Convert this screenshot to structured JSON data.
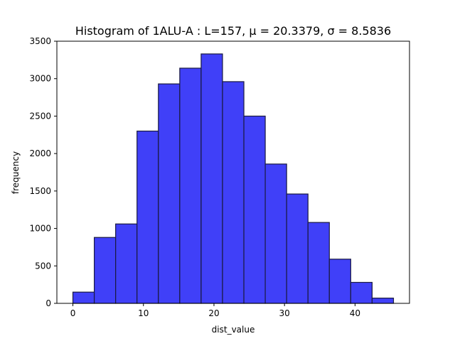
{
  "chart_data": {
    "type": "bar",
    "title": "Histogram of 1ALU-A : L=157, μ = 20.3379, σ = 8.5836",
    "xlabel": "dist_value",
    "ylabel": "frequency",
    "bin_edges": [
      0.0,
      3.03,
      6.06,
      9.09,
      12.12,
      15.15,
      18.18,
      21.21,
      24.24,
      27.27,
      30.3,
      33.33,
      36.36,
      39.39,
      42.42,
      45.45
    ],
    "values": [
      150,
      880,
      1060,
      2300,
      2930,
      3140,
      3330,
      2960,
      2500,
      1860,
      1460,
      1080,
      590,
      280,
      70
    ],
    "xlim": [
      -2.27,
      47.72
    ],
    "ylim": [
      0,
      3500
    ],
    "xticks": [
      0,
      10,
      20,
      30,
      40
    ],
    "yticks": [
      0,
      500,
      1000,
      1500,
      2000,
      2500,
      3000,
      3500
    ],
    "bar_color": "#4040f8",
    "edge_color": "#1a1a40",
    "grid": false,
    "legend": "none"
  }
}
